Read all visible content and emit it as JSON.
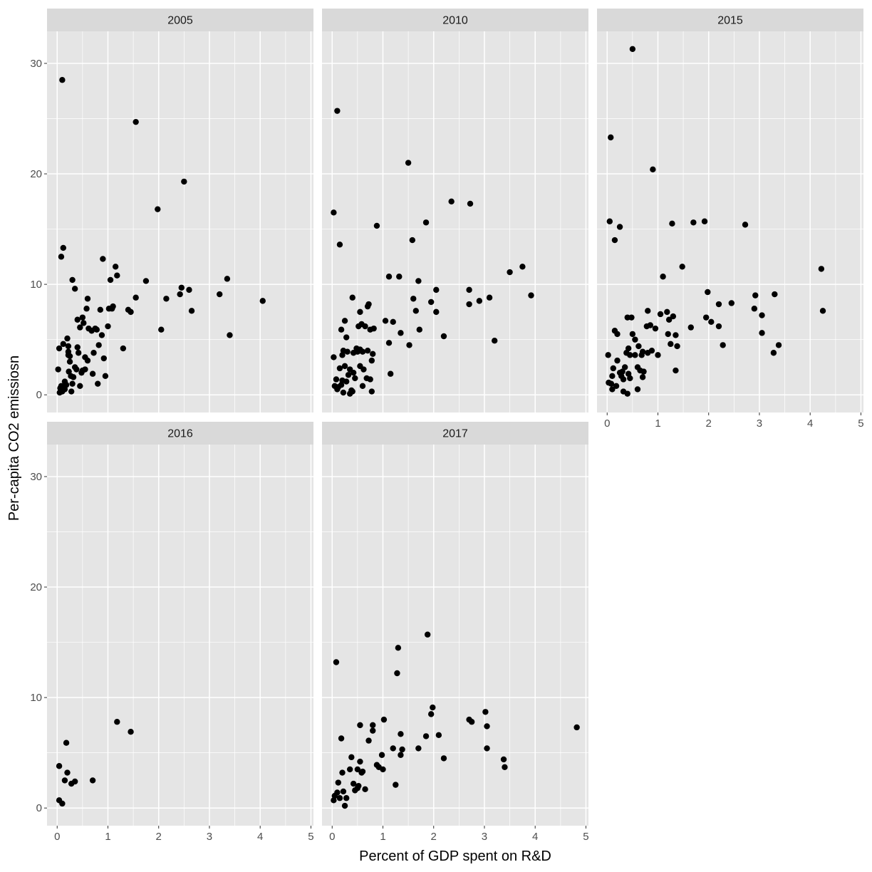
{
  "chart_data": {
    "type": "scatter",
    "xlabel": "Percent of GDP spent on R&D",
    "ylabel": "Per-capita CO2 emissiosn",
    "xlim": [
      -0.2,
      5.05
    ],
    "ylim": [
      -1.6,
      32.9
    ],
    "x_ticks": [
      0,
      1,
      2,
      3,
      4,
      5
    ],
    "y_ticks": [
      0,
      10,
      20,
      30
    ],
    "grid": true,
    "colors": {
      "panel_bg": "#e5e5e5",
      "strip_bg": "#d9d9d9",
      "grid": "#ffffff",
      "point": "#000000",
      "tick": "#333333"
    },
    "facets": [
      {
        "label": "2005",
        "points": [
          [
            0.04,
            4.2
          ],
          [
            0.08,
            12.5
          ],
          [
            0.12,
            13.3
          ],
          [
            0.1,
            28.5
          ],
          [
            0.05,
            0.2
          ],
          [
            0.08,
            0.8
          ],
          [
            0.1,
            0.3
          ],
          [
            0.15,
            1.2
          ],
          [
            0.18,
            0.9
          ],
          [
            0.2,
            5.1
          ],
          [
            0.22,
            3.9
          ],
          [
            0.22,
            4.4
          ],
          [
            0.25,
            3.5
          ],
          [
            0.25,
            3.0
          ],
          [
            0.23,
            2.1
          ],
          [
            0.27,
            1.7
          ],
          [
            0.3,
            10.4
          ],
          [
            0.28,
            0.3
          ],
          [
            0.35,
            9.6
          ],
          [
            0.35,
            2.5
          ],
          [
            0.38,
            2.3
          ],
          [
            0.4,
            6.8
          ],
          [
            0.4,
            4.3
          ],
          [
            0.42,
            3.8
          ],
          [
            0.45,
            6.1
          ],
          [
            0.45,
            0.8
          ],
          [
            0.5,
            7.0
          ],
          [
            0.5,
            2.2
          ],
          [
            0.52,
            6.5
          ],
          [
            0.55,
            3.4
          ],
          [
            0.55,
            2.3
          ],
          [
            0.58,
            7.8
          ],
          [
            0.6,
            3.1
          ],
          [
            0.6,
            8.7
          ],
          [
            0.62,
            6.0
          ],
          [
            0.68,
            5.8
          ],
          [
            0.7,
            1.9
          ],
          [
            0.72,
            3.8
          ],
          [
            0.75,
            6.0
          ],
          [
            0.78,
            5.9
          ],
          [
            0.8,
            1.0
          ],
          [
            0.82,
            4.5
          ],
          [
            0.85,
            7.7
          ],
          [
            0.88,
            5.4
          ],
          [
            0.9,
            12.3
          ],
          [
            0.92,
            3.3
          ],
          [
            0.95,
            1.7
          ],
          [
            1.0,
            6.2
          ],
          [
            1.02,
            7.8
          ],
          [
            1.05,
            10.4
          ],
          [
            1.08,
            7.8
          ],
          [
            1.1,
            8.0
          ],
          [
            1.15,
            11.6
          ],
          [
            1.18,
            10.8
          ],
          [
            1.3,
            4.2
          ],
          [
            1.4,
            7.7
          ],
          [
            1.45,
            7.5
          ],
          [
            1.55,
            8.8
          ],
          [
            1.55,
            24.7
          ],
          [
            1.75,
            10.3
          ],
          [
            1.98,
            16.8
          ],
          [
            2.05,
            5.9
          ],
          [
            2.15,
            8.7
          ],
          [
            2.42,
            9.1
          ],
          [
            2.45,
            9.7
          ],
          [
            2.5,
            19.3
          ],
          [
            2.6,
            9.5
          ],
          [
            2.65,
            7.6
          ],
          [
            3.2,
            9.1
          ],
          [
            3.35,
            10.5
          ],
          [
            3.4,
            5.4
          ],
          [
            4.05,
            8.5
          ],
          [
            0.22,
            3.6
          ],
          [
            0.02,
            2.3
          ],
          [
            0.3,
            1.0
          ],
          [
            0.12,
            4.6
          ],
          [
            0.15,
            0.5
          ],
          [
            0.06,
            0.6
          ],
          [
            0.32,
            1.6
          ],
          [
            0.48,
            2.0
          ]
        ]
      },
      {
        "label": "2010",
        "points": [
          [
            0.03,
            16.5
          ],
          [
            0.03,
            3.4
          ],
          [
            0.05,
            0.8
          ],
          [
            0.1,
            25.7
          ],
          [
            0.1,
            0.5
          ],
          [
            0.15,
            13.6
          ],
          [
            0.15,
            2.4
          ],
          [
            0.18,
            5.9
          ],
          [
            0.18,
            0.9
          ],
          [
            0.2,
            3.6
          ],
          [
            0.2,
            1.3
          ],
          [
            0.22,
            4.0
          ],
          [
            0.22,
            0.2
          ],
          [
            0.25,
            6.7
          ],
          [
            0.25,
            2.6
          ],
          [
            0.28,
            5.2
          ],
          [
            0.3,
            3.9
          ],
          [
            0.32,
            1.8
          ],
          [
            0.35,
            2.3
          ],
          [
            0.38,
            0.4
          ],
          [
            0.4,
            8.8
          ],
          [
            0.4,
            0.3
          ],
          [
            0.42,
            3.8
          ],
          [
            0.45,
            1.5
          ],
          [
            0.48,
            4.2
          ],
          [
            0.5,
            3.9
          ],
          [
            0.52,
            6.2
          ],
          [
            0.55,
            7.5
          ],
          [
            0.55,
            2.6
          ],
          [
            0.58,
            6.4
          ],
          [
            0.6,
            3.9
          ],
          [
            0.62,
            2.3
          ],
          [
            0.65,
            6.2
          ],
          [
            0.68,
            1.5
          ],
          [
            0.7,
            8.0
          ],
          [
            0.7,
            4.0
          ],
          [
            0.72,
            8.2
          ],
          [
            0.75,
            5.9
          ],
          [
            0.75,
            1.4
          ],
          [
            0.78,
            3.1
          ],
          [
            0.78,
            0.3
          ],
          [
            0.8,
            3.7
          ],
          [
            0.82,
            6.0
          ],
          [
            0.88,
            15.3
          ],
          [
            1.05,
            6.7
          ],
          [
            1.12,
            4.7
          ],
          [
            1.12,
            10.7
          ],
          [
            1.15,
            1.9
          ],
          [
            1.2,
            6.6
          ],
          [
            1.32,
            10.7
          ],
          [
            1.35,
            5.6
          ],
          [
            1.5,
            21.0
          ],
          [
            1.52,
            4.5
          ],
          [
            1.58,
            14.0
          ],
          [
            1.6,
            8.7
          ],
          [
            1.65,
            7.6
          ],
          [
            1.7,
            10.3
          ],
          [
            1.72,
            5.9
          ],
          [
            1.85,
            15.6
          ],
          [
            1.95,
            8.4
          ],
          [
            2.05,
            7.5
          ],
          [
            2.05,
            9.5
          ],
          [
            2.2,
            5.3
          ],
          [
            2.35,
            17.5
          ],
          [
            2.7,
            8.2
          ],
          [
            2.7,
            9.5
          ],
          [
            2.72,
            17.3
          ],
          [
            2.9,
            8.5
          ],
          [
            3.1,
            8.8
          ],
          [
            3.2,
            4.9
          ],
          [
            3.5,
            11.1
          ],
          [
            3.75,
            11.6
          ],
          [
            3.92,
            9.0
          ],
          [
            0.08,
            1.4
          ],
          [
            0.12,
            0.7
          ],
          [
            0.28,
            1.2
          ],
          [
            0.35,
            0.1
          ],
          [
            0.42,
            2.0
          ],
          [
            0.55,
            4.1
          ],
          [
            0.6,
            0.8
          ]
        ]
      },
      {
        "label": "2015",
        "points": [
          [
            0.02,
            3.6
          ],
          [
            0.03,
            1.1
          ],
          [
            0.05,
            15.7
          ],
          [
            0.07,
            23.3
          ],
          [
            0.08,
            1.0
          ],
          [
            0.1,
            1.7
          ],
          [
            0.1,
            0.5
          ],
          [
            0.12,
            2.4
          ],
          [
            0.15,
            5.8
          ],
          [
            0.15,
            14.0
          ],
          [
            0.18,
            0.8
          ],
          [
            0.2,
            3.1
          ],
          [
            0.2,
            5.5
          ],
          [
            0.25,
            15.2
          ],
          [
            0.28,
            1.7
          ],
          [
            0.3,
            2.1
          ],
          [
            0.32,
            0.3
          ],
          [
            0.35,
            2.5
          ],
          [
            0.38,
            3.8
          ],
          [
            0.4,
            0.1
          ],
          [
            0.4,
            7.0
          ],
          [
            0.42,
            1.9
          ],
          [
            0.45,
            3.6
          ],
          [
            0.48,
            7.0
          ],
          [
            0.5,
            5.5
          ],
          [
            0.5,
            31.3
          ],
          [
            0.55,
            3.6
          ],
          [
            0.6,
            0.5
          ],
          [
            0.62,
            4.4
          ],
          [
            0.65,
            2.2
          ],
          [
            0.68,
            3.6
          ],
          [
            0.7,
            1.6
          ],
          [
            0.72,
            2.1
          ],
          [
            0.78,
            6.2
          ],
          [
            0.8,
            7.6
          ],
          [
            0.85,
            6.3
          ],
          [
            0.88,
            4.0
          ],
          [
            0.9,
            20.4
          ],
          [
            0.95,
            6.0
          ],
          [
            1.0,
            3.6
          ],
          [
            1.05,
            7.3
          ],
          [
            1.1,
            10.7
          ],
          [
            1.18,
            7.5
          ],
          [
            1.2,
            5.5
          ],
          [
            1.22,
            6.8
          ],
          [
            1.25,
            4.6
          ],
          [
            1.28,
            15.5
          ],
          [
            1.3,
            7.1
          ],
          [
            1.35,
            5.4
          ],
          [
            1.35,
            2.2
          ],
          [
            1.38,
            4.4
          ],
          [
            1.48,
            11.6
          ],
          [
            1.65,
            6.1
          ],
          [
            1.7,
            15.6
          ],
          [
            1.92,
            15.7
          ],
          [
            1.95,
            7.0
          ],
          [
            1.98,
            9.3
          ],
          [
            2.05,
            6.6
          ],
          [
            2.2,
            8.2
          ],
          [
            2.2,
            6.2
          ],
          [
            2.28,
            4.5
          ],
          [
            2.45,
            8.3
          ],
          [
            2.72,
            15.4
          ],
          [
            2.9,
            7.8
          ],
          [
            2.92,
            9.0
          ],
          [
            3.05,
            7.2
          ],
          [
            3.05,
            5.6
          ],
          [
            3.28,
            3.8
          ],
          [
            3.3,
            9.1
          ],
          [
            3.38,
            4.5
          ],
          [
            4.22,
            11.4
          ],
          [
            4.25,
            7.6
          ],
          [
            0.25,
            2.0
          ],
          [
            0.45,
            1.5
          ],
          [
            0.55,
            5.0
          ],
          [
            0.7,
            3.9
          ],
          [
            0.8,
            3.8
          ],
          [
            0.42,
            4.2
          ],
          [
            0.32,
            1.4
          ],
          [
            0.6,
            2.5
          ]
        ]
      },
      {
        "label": "2016",
        "points": [
          [
            0.04,
            0.7
          ],
          [
            0.04,
            3.8
          ],
          [
            0.1,
            0.4
          ],
          [
            0.15,
            2.5
          ],
          [
            0.18,
            5.9
          ],
          [
            0.2,
            3.2
          ],
          [
            0.28,
            2.2
          ],
          [
            0.35,
            2.4
          ],
          [
            0.7,
            2.5
          ],
          [
            1.18,
            7.8
          ],
          [
            1.45,
            6.9
          ]
        ]
      },
      {
        "label": "2017",
        "points": [
          [
            0.03,
            0.7
          ],
          [
            0.05,
            1.1
          ],
          [
            0.08,
            13.2
          ],
          [
            0.1,
            1.4
          ],
          [
            0.12,
            2.3
          ],
          [
            0.15,
            0.9
          ],
          [
            0.18,
            6.3
          ],
          [
            0.2,
            3.2
          ],
          [
            0.22,
            1.5
          ],
          [
            0.25,
            0.2
          ],
          [
            0.28,
            0.9
          ],
          [
            0.35,
            3.5
          ],
          [
            0.38,
            4.6
          ],
          [
            0.42,
            2.2
          ],
          [
            0.45,
            1.6
          ],
          [
            0.5,
            1.8
          ],
          [
            0.5,
            3.5
          ],
          [
            0.52,
            2.0
          ],
          [
            0.55,
            4.2
          ],
          [
            0.55,
            7.5
          ],
          [
            0.58,
            3.2
          ],
          [
            0.6,
            3.3
          ],
          [
            0.65,
            1.7
          ],
          [
            0.72,
            6.1
          ],
          [
            0.8,
            7.0
          ],
          [
            0.8,
            7.5
          ],
          [
            0.88,
            3.9
          ],
          [
            0.92,
            3.7
          ],
          [
            0.98,
            4.8
          ],
          [
            1.0,
            3.5
          ],
          [
            1.02,
            8.0
          ],
          [
            1.2,
            5.4
          ],
          [
            1.25,
            2.1
          ],
          [
            1.28,
            12.2
          ],
          [
            1.3,
            14.5
          ],
          [
            1.35,
            6.7
          ],
          [
            1.35,
            4.8
          ],
          [
            1.38,
            5.3
          ],
          [
            1.7,
            5.4
          ],
          [
            1.85,
            6.5
          ],
          [
            1.88,
            15.7
          ],
          [
            1.95,
            8.5
          ],
          [
            1.98,
            9.1
          ],
          [
            2.1,
            6.6
          ],
          [
            2.2,
            4.5
          ],
          [
            2.7,
            8.0
          ],
          [
            2.75,
            7.8
          ],
          [
            3.02,
            8.7
          ],
          [
            3.05,
            7.4
          ],
          [
            3.05,
            5.4
          ],
          [
            3.38,
            4.4
          ],
          [
            3.4,
            3.7
          ],
          [
            4.82,
            7.3
          ]
        ]
      }
    ]
  }
}
